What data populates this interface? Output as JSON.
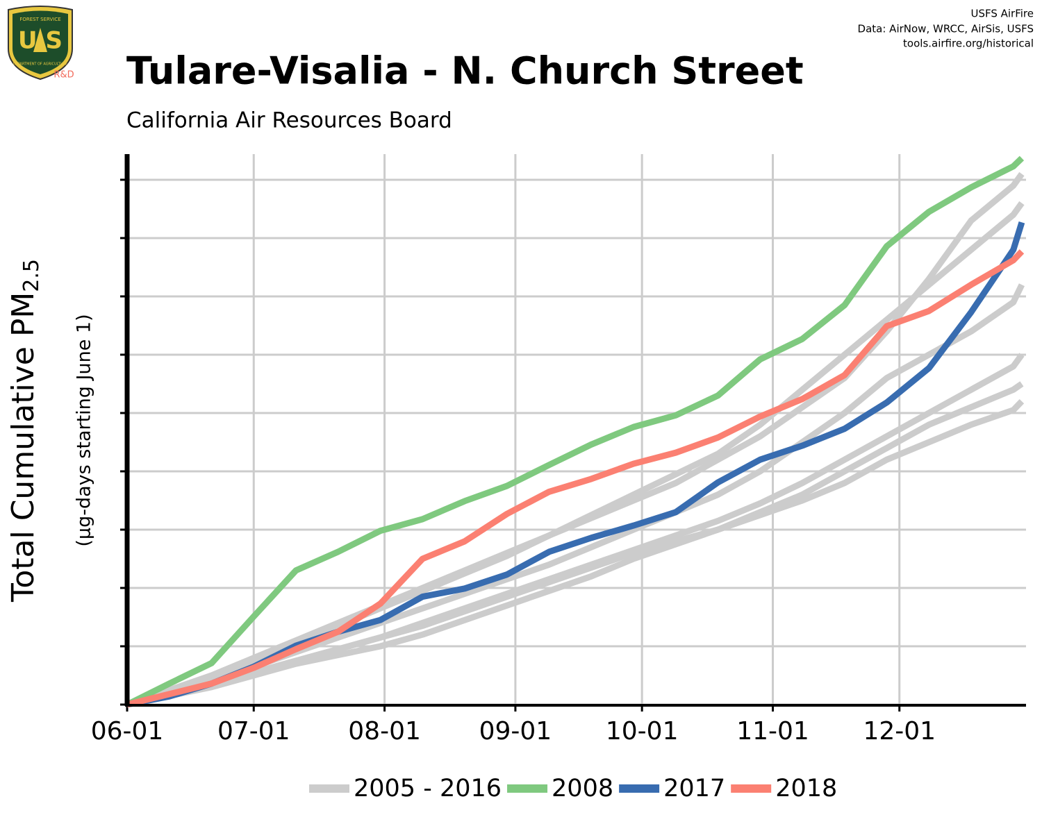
{
  "chart_data": {
    "type": "line",
    "title": "Tulare-Visalia - N. Church Street",
    "subtitle": "California Air Resources Board",
    "ylabel": {
      "text": "Total Cumulative PM",
      "subscript": "2.5"
    },
    "ylabel_note": "(µg-days starting June 1)",
    "credits": [
      "USFS AirFire",
      "Data: AirNow, WRCC, AirSis, USFS",
      "tools.airfire.org/historical"
    ],
    "logo": {
      "top": "FOREST SERVICE",
      "letters": "U S",
      "bottom": "DEPARTMENT OF AGRICULTURE",
      "tag": "R&D"
    },
    "grid": true,
    "xlim": [
      0,
      213
    ],
    "xticks": [
      {
        "value": 0,
        "label": "06-01"
      },
      {
        "value": 30,
        "label": "07-01"
      },
      {
        "value": 61,
        "label": "08-01"
      },
      {
        "value": 92,
        "label": "09-01"
      },
      {
        "value": 122,
        "label": "10-01"
      },
      {
        "value": 153,
        "label": "11-01"
      },
      {
        "value": 183,
        "label": "12-01"
      }
    ],
    "ylim": [
      0,
      9.44
    ],
    "yticks": [
      0,
      1,
      2,
      3,
      4,
      5,
      6,
      7,
      8,
      9
    ],
    "x": [
      0,
      10,
      20,
      30,
      40,
      50,
      60,
      70,
      80,
      90,
      100,
      110,
      120,
      130,
      140,
      150,
      160,
      170,
      180,
      190,
      200,
      210,
      212
    ],
    "background_series": {
      "name": "2005 - 2016",
      "color": "#cccccc",
      "lines": [
        [
          0,
          0.25,
          0.5,
          0.8,
          1.1,
          1.4,
          1.7,
          2.0,
          2.3,
          2.6,
          2.9,
          3.2,
          3.5,
          3.8,
          4.2,
          4.6,
          5.1,
          5.6,
          6.4,
          7.3,
          8.3,
          8.9,
          9.1
        ],
        [
          0,
          0.2,
          0.45,
          0.75,
          1.05,
          1.35,
          1.65,
          1.95,
          2.25,
          2.55,
          2.9,
          3.25,
          3.6,
          3.95,
          4.3,
          4.8,
          5.4,
          6.0,
          6.6,
          7.2,
          7.8,
          8.4,
          8.6
        ],
        [
          0,
          0.2,
          0.4,
          0.65,
          0.9,
          1.15,
          1.4,
          1.65,
          1.9,
          2.15,
          2.4,
          2.7,
          3.0,
          3.3,
          3.6,
          4.0,
          4.5,
          5.0,
          5.6,
          6.0,
          6.4,
          6.9,
          7.2
        ],
        [
          0,
          0.15,
          0.35,
          0.55,
          0.75,
          0.95,
          1.15,
          1.4,
          1.65,
          1.9,
          2.15,
          2.4,
          2.65,
          2.9,
          3.15,
          3.45,
          3.8,
          4.2,
          4.6,
          5.0,
          5.4,
          5.8,
          6.0
        ],
        [
          0,
          0.15,
          0.3,
          0.5,
          0.7,
          0.85,
          1.0,
          1.2,
          1.45,
          1.7,
          1.95,
          2.2,
          2.5,
          2.75,
          3.0,
          3.3,
          3.6,
          4.0,
          4.4,
          4.8,
          5.1,
          5.4,
          5.5
        ],
        [
          0,
          0.2,
          0.35,
          0.55,
          0.75,
          0.95,
          1.15,
          1.35,
          1.6,
          1.85,
          2.1,
          2.35,
          2.6,
          2.8,
          3.0,
          3.25,
          3.5,
          3.8,
          4.2,
          4.5,
          4.8,
          5.05,
          5.2
        ]
      ]
    },
    "series": [
      {
        "name": "2008",
        "color": "#7fc97f",
        "values": [
          0,
          0.36,
          0.71,
          1.51,
          2.3,
          2.62,
          2.98,
          3.18,
          3.49,
          3.75,
          4.11,
          4.46,
          4.76,
          4.96,
          5.3,
          5.92,
          6.27,
          6.85,
          7.86,
          8.45,
          8.87,
          9.23,
          9.37
        ]
      },
      {
        "name": "2017",
        "color": "#386cb0",
        "values": [
          0,
          0.14,
          0.36,
          0.65,
          1.01,
          1.25,
          1.45,
          1.85,
          1.99,
          2.23,
          2.62,
          2.86,
          3.07,
          3.3,
          3.81,
          4.2,
          4.44,
          4.73,
          5.18,
          5.77,
          6.73,
          7.8,
          8.27
        ]
      },
      {
        "name": "2018",
        "color": "#fb8072",
        "values": [
          0,
          0.18,
          0.36,
          0.63,
          0.95,
          1.25,
          1.73,
          2.5,
          2.8,
          3.27,
          3.65,
          3.87,
          4.13,
          4.32,
          4.58,
          4.94,
          5.24,
          5.65,
          6.49,
          6.75,
          7.2,
          7.62,
          7.77
        ]
      }
    ]
  }
}
